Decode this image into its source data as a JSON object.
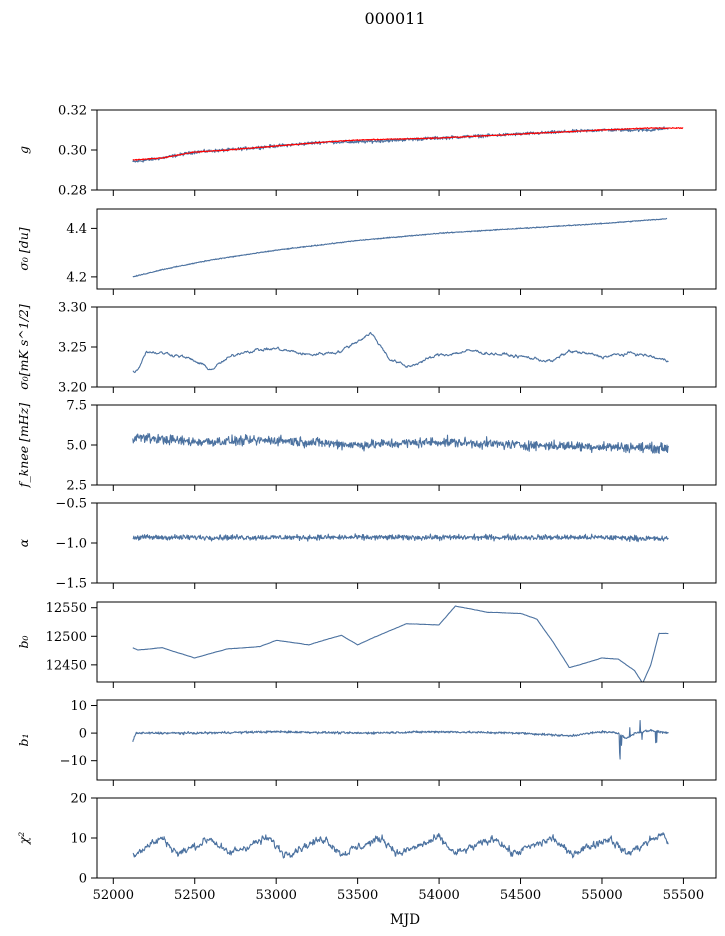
{
  "title": "000011",
  "colors": {
    "series": "#4c72a0",
    "overlay": "#ff0000"
  },
  "chart_data": {
    "type": "line",
    "xlabel": "MJD",
    "xlim": [
      51900,
      55700
    ],
    "xticks": [
      52000,
      52500,
      53000,
      53500,
      54000,
      54500,
      55000,
      55500
    ],
    "x_range": [
      52120,
      55410
    ],
    "panels": [
      {
        "key": "g",
        "ylabel": "g",
        "ylim": [
          0.28,
          0.32
        ],
        "yticks": [
          0.28,
          0.3,
          0.32
        ],
        "ytick_labels": [
          "0.28",
          "0.30",
          "0.32"
        ],
        "noise": 0.0012,
        "series": [
          {
            "name": "",
            "color": "#4c72a0",
            "x": [
              52120,
              52300,
              52500,
              52700,
              53000,
              53300,
              53500,
              54000,
              54500,
              55000,
              55300,
              55410
            ],
            "y": [
              0.294,
              0.296,
              0.299,
              0.3,
              0.302,
              0.304,
              0.304,
              0.306,
              0.308,
              0.31,
              0.31,
              0.311
            ]
          },
          {
            "name": "",
            "color": "#ff0000",
            "x": [
              52120,
              52300,
              52500,
              52700,
              53000,
              53300,
              53500,
              54000,
              54500,
              55000,
              55300,
              55500
            ],
            "y": [
              0.295,
              0.296,
              0.299,
              0.3,
              0.302,
              0.304,
              0.305,
              0.306,
              0.308,
              0.31,
              0.311,
              0.311
            ]
          }
        ]
      },
      {
        "key": "sigma0",
        "ylabel": "σ₀ [du]",
        "ylim": [
          4.15,
          4.48
        ],
        "yticks": [
          4.2,
          4.4
        ],
        "ytick_labels": [
          "4.2",
          "4.4"
        ],
        "noise": 0.003,
        "series": [
          {
            "name": "",
            "color": "#4c72a0",
            "x": [
              52120,
              52300,
              52600,
              53000,
              53500,
              54000,
              54500,
              55000,
              55400
            ],
            "y": [
              4.2,
              4.23,
              4.27,
              4.31,
              4.35,
              4.38,
              4.4,
              4.42,
              4.44
            ]
          }
        ]
      },
      {
        "key": "sigma0_mk",
        "ylabel": "σ₀[mK s^1/2]",
        "ylim": [
          3.2,
          3.3
        ],
        "yticks": [
          3.2,
          3.25,
          3.3
        ],
        "ytick_labels": [
          "3.20",
          "3.25",
          "3.30"
        ],
        "noise": 0.004,
        "series": [
          {
            "name": "",
            "color": "#4c72a0",
            "x": [
              52120,
              52150,
              52200,
              52400,
              52500,
              52600,
              52700,
              52800,
              53000,
              53200,
              53400,
              53580,
              53700,
              53800,
              54000,
              54200,
              54500,
              54700,
              54800,
              55000,
              55200,
              55300,
              55410
            ],
            "y": [
              3.22,
              3.222,
              3.245,
              3.24,
              3.232,
              3.222,
              3.235,
              3.245,
              3.248,
              3.24,
              3.245,
              3.268,
              3.235,
              3.225,
              3.24,
              3.245,
              3.238,
              3.232,
              3.245,
              3.238,
              3.242,
              3.238,
              3.232
            ]
          }
        ]
      },
      {
        "key": "fknee",
        "ylabel": "f_knee [mHz]",
        "ylim": [
          2.5,
          7.5
        ],
        "yticks": [
          2.5,
          5.0,
          7.5
        ],
        "ytick_labels": [
          "2.5",
          "5.0",
          "7.5"
        ],
        "noise": 0.45,
        "series": [
          {
            "name": "",
            "color": "#4c72a0",
            "x": [
              52120,
              52500,
              53000,
              53500,
              54000,
              54500,
              55000,
              55410
            ],
            "y": [
              5.5,
              5.2,
              5.3,
              5.0,
              5.2,
              5.0,
              4.9,
              4.8
            ]
          }
        ]
      },
      {
        "key": "alpha",
        "ylabel": "α",
        "ylim": [
          -1.5,
          -0.5
        ],
        "yticks": [
          -1.5,
          -1.0,
          -0.5
        ],
        "ytick_labels": [
          "−1.5",
          "−1.0",
          "−0.5"
        ],
        "noise": 0.05,
        "series": [
          {
            "name": "",
            "color": "#4c72a0",
            "x": [
              52120,
              53000,
              54000,
              55000,
              55410
            ],
            "y": [
              -0.93,
              -0.93,
              -0.93,
              -0.93,
              -0.95
            ]
          }
        ]
      },
      {
        "key": "b0",
        "ylabel": "b₀",
        "ylim": [
          12420,
          12560
        ],
        "yticks": [
          12450,
          12500,
          12550
        ],
        "ytick_labels": [
          "12450",
          "12500",
          "12550"
        ],
        "noise": 0.5,
        "series": [
          {
            "name": "",
            "color": "#4c72a0",
            "x": [
              52120,
              52150,
              52300,
              52500,
              52700,
              52900,
              53000,
              53200,
              53400,
              53500,
              53600,
              53800,
              54000,
              54100,
              54300,
              54500,
              54600,
              54700,
              54800,
              55000,
              55100,
              55150,
              55200,
              55250,
              55300,
              55350,
              55410
            ],
            "y": [
              12480,
              12476,
              12480,
              12462,
              12478,
              12482,
              12493,
              12485,
              12502,
              12485,
              12498,
              12522,
              12520,
              12553,
              12542,
              12540,
              12530,
              12490,
              12445,
              12462,
              12460,
              12450,
              12440,
              12418,
              12450,
              12505,
              12505
            ]
          }
        ]
      },
      {
        "key": "b1",
        "ylabel": "b₁",
        "ylim": [
          -17,
          12
        ],
        "yticks": [
          -10,
          0,
          10
        ],
        "ytick_labels": [
          "−10",
          "0",
          "10"
        ],
        "noise": 0.6,
        "series": [
          {
            "name": "",
            "color": "#4c72a0",
            "x": [
              52120,
              52140,
              52500,
              53000,
              53500,
              54000,
              54500,
              54800,
              55000,
              55100,
              55150,
              55200,
              55300,
              55410
            ],
            "y": [
              -3,
              0,
              0,
              0.5,
              0,
              0.5,
              0,
              -1,
              0.5,
              0,
              -2,
              0,
              1,
              0
            ]
          }
        ]
      },
      {
        "key": "chi2",
        "ylabel": "χ²",
        "ylim": [
          0,
          20
        ],
        "yticks": [
          0,
          10,
          20
        ],
        "ytick_labels": [
          "0",
          "10",
          "20"
        ],
        "noise": 1.2,
        "series": [
          {
            "name": "",
            "color": "#4c72a0",
            "x": [
              52120,
              52300,
              52400,
              52600,
              52700,
              52950,
              53050,
              53300,
              53400,
              53650,
              53750,
              54000,
              54100,
              54350,
              54450,
              54700,
              54800,
              55050,
              55150,
              55370,
              55410
            ],
            "y": [
              6,
              10,
              6,
              10,
              6,
              10,
              6,
              10,
              6,
              10,
              6,
              10,
              6,
              10,
              6,
              10,
              6,
              10,
              6,
              11,
              9
            ]
          }
        ]
      }
    ]
  }
}
